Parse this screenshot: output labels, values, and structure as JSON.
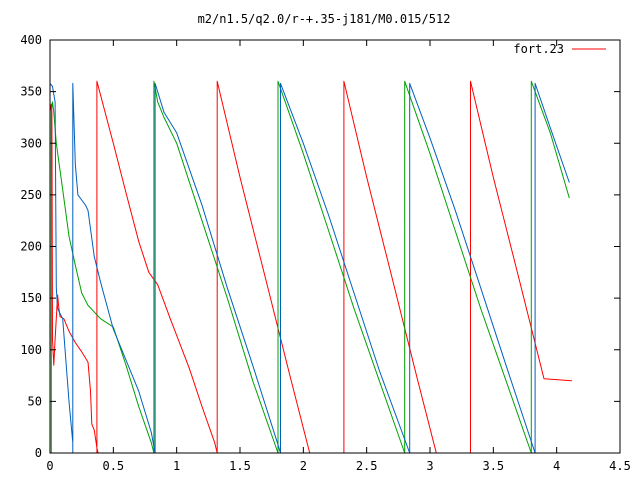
{
  "chart_data": {
    "type": "line",
    "title": "m2/n1.5/q2.0/r-+.35-j181/M0.015/512",
    "xlabel": "",
    "ylabel": "",
    "xlim": [
      0,
      4.5
    ],
    "ylim": [
      0,
      400
    ],
    "x_ticks": [
      0,
      0.5,
      1,
      1.5,
      2,
      2.5,
      3,
      3.5,
      4,
      4.5
    ],
    "x_tick_labels": [
      "0",
      "0.5",
      "1",
      "1.5",
      "2",
      "2.5",
      "3",
      "3.5",
      "4",
      "4.5"
    ],
    "y_ticks": [
      0,
      50,
      100,
      150,
      200,
      250,
      300,
      350,
      400
    ],
    "y_tick_labels": [
      "0",
      "50",
      "100",
      "150",
      "200",
      "250",
      "300",
      "350",
      "400"
    ],
    "grid": false,
    "legend_position": "top-right",
    "legend_entries": [
      {
        "label": "fort.23",
        "color": "#ff0000"
      }
    ],
    "series": [
      {
        "color": "#ff0000",
        "points": [
          [
            0.0,
            0
          ],
          [
            0.0,
            330
          ],
          [
            0.01,
            338
          ],
          [
            0.015,
            330
          ],
          [
            0.02,
            110
          ],
          [
            0.03,
            85
          ],
          [
            0.04,
            110
          ],
          [
            0.06,
            153
          ],
          [
            0.07,
            140
          ],
          [
            0.08,
            132
          ],
          [
            0.11,
            130
          ],
          [
            0.15,
            118
          ],
          [
            0.2,
            107
          ],
          [
            0.25,
            98
          ],
          [
            0.3,
            88
          ],
          [
            0.32,
            60
          ],
          [
            0.33,
            28
          ],
          [
            0.35,
            22
          ],
          [
            0.37,
            5
          ],
          [
            0.38,
            0
          ],
          null,
          [
            0.37,
            0
          ],
          [
            0.37,
            360
          ],
          [
            0.5,
            300
          ],
          [
            0.6,
            252
          ],
          [
            0.7,
            205
          ],
          [
            0.78,
            175
          ],
          [
            0.85,
            163
          ],
          [
            0.95,
            130
          ],
          [
            1.1,
            82
          ],
          [
            1.2,
            45
          ],
          [
            1.3,
            10
          ],
          [
            1.32,
            0
          ],
          null,
          [
            1.32,
            0
          ],
          [
            1.32,
            360
          ],
          [
            1.5,
            267
          ],
          [
            1.7,
            170
          ],
          [
            1.9,
            72
          ],
          [
            2.05,
            0
          ],
          null,
          [
            2.32,
            0
          ],
          [
            2.32,
            360
          ],
          [
            2.5,
            267
          ],
          [
            2.7,
            170
          ],
          [
            2.9,
            72
          ],
          [
            3.05,
            0
          ],
          null,
          [
            3.32,
            0
          ],
          [
            3.32,
            360
          ],
          [
            3.5,
            267
          ],
          [
            3.7,
            170
          ],
          [
            3.9,
            72
          ],
          [
            4.12,
            70
          ]
        ]
      },
      {
        "color": "#00a000",
        "points": [
          [
            0.01,
            0
          ],
          [
            0.01,
            330
          ],
          [
            0.02,
            340
          ],
          [
            0.03,
            330
          ],
          [
            0.05,
            300
          ],
          [
            0.1,
            255
          ],
          [
            0.15,
            210
          ],
          [
            0.2,
            182
          ],
          [
            0.25,
            155
          ],
          [
            0.3,
            143
          ],
          [
            0.4,
            130
          ],
          [
            0.5,
            122
          ],
          [
            0.6,
            85
          ],
          [
            0.7,
            45
          ],
          [
            0.8,
            10
          ],
          [
            0.82,
            0
          ],
          null,
          [
            0.82,
            0
          ],
          [
            0.82,
            360
          ],
          [
            0.85,
            340
          ],
          [
            0.9,
            325
          ],
          [
            1.0,
            300
          ],
          [
            1.2,
            225
          ],
          [
            1.4,
            150
          ],
          [
            1.6,
            70
          ],
          [
            1.8,
            0
          ],
          null,
          [
            1.8,
            0
          ],
          [
            1.8,
            360
          ],
          [
            2.0,
            290
          ],
          [
            2.2,
            215
          ],
          [
            2.4,
            140
          ],
          [
            2.6,
            70
          ],
          [
            2.8,
            0
          ],
          null,
          [
            2.8,
            0
          ],
          [
            2.8,
            360
          ],
          [
            3.0,
            290
          ],
          [
            3.2,
            215
          ],
          [
            3.4,
            140
          ],
          [
            3.6,
            70
          ],
          [
            3.8,
            0
          ],
          null,
          [
            3.8,
            0
          ],
          [
            3.8,
            360
          ],
          [
            3.95,
            310
          ],
          [
            4.1,
            247
          ]
        ]
      },
      {
        "color": "#0060c0",
        "points": [
          [
            0.0,
            20
          ],
          [
            0.0,
            358
          ],
          [
            0.02,
            355
          ],
          [
            0.04,
            340
          ],
          [
            0.05,
            160
          ],
          [
            0.06,
            140
          ],
          [
            0.08,
            135
          ],
          [
            0.1,
            130
          ],
          [
            0.15,
            50
          ],
          [
            0.18,
            10
          ],
          null,
          [
            0.18,
            0
          ],
          [
            0.18,
            358
          ],
          [
            0.2,
            280
          ],
          [
            0.22,
            250
          ],
          [
            0.25,
            245
          ],
          [
            0.28,
            240
          ],
          [
            0.3,
            235
          ],
          [
            0.35,
            190
          ],
          [
            0.4,
            165
          ],
          [
            0.5,
            120
          ],
          [
            0.6,
            90
          ],
          [
            0.7,
            60
          ],
          [
            0.8,
            20
          ],
          [
            0.83,
            0
          ],
          null,
          [
            0.83,
            0
          ],
          [
            0.83,
            358
          ],
          [
            0.9,
            330
          ],
          [
            1.0,
            310
          ],
          [
            1.2,
            240
          ],
          [
            1.4,
            160
          ],
          [
            1.6,
            85
          ],
          [
            1.8,
            8
          ],
          [
            1.82,
            0
          ],
          null,
          [
            1.82,
            0
          ],
          [
            1.82,
            358
          ],
          [
            2.0,
            300
          ],
          [
            2.2,
            230
          ],
          [
            2.4,
            155
          ],
          [
            2.6,
            80
          ],
          [
            2.84,
            0
          ],
          null,
          [
            2.84,
            0
          ],
          [
            2.84,
            358
          ],
          [
            3.0,
            305
          ],
          [
            3.2,
            235
          ],
          [
            3.4,
            160
          ],
          [
            3.6,
            85
          ],
          [
            3.83,
            0
          ],
          null,
          [
            3.83,
            0
          ],
          [
            3.83,
            358
          ],
          [
            3.95,
            315
          ],
          [
            4.1,
            262
          ]
        ]
      }
    ]
  }
}
